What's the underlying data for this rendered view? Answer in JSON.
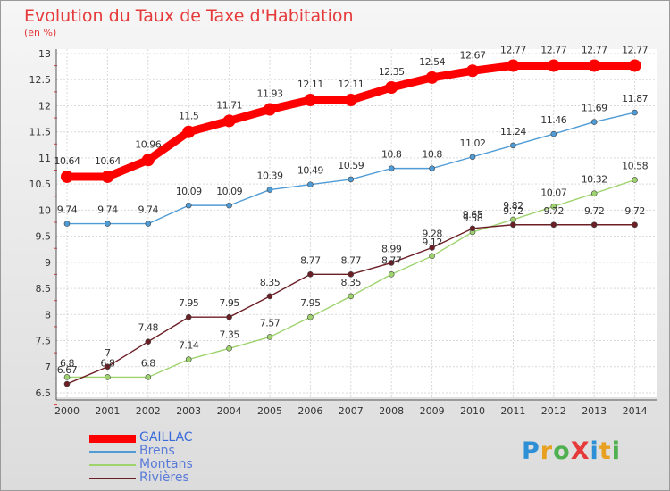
{
  "title": "Evolution du Taux de Taxe d'Habitation",
  "unit": "(en %)",
  "logo": {
    "text": "ProXiti",
    "letters": [
      {
        "ch": "P",
        "color": "#2d8fd6"
      },
      {
        "ch": "r",
        "color": "#e8a020"
      },
      {
        "ch": "o",
        "color": "#4fb04f"
      },
      {
        "ch": "X",
        "color": "#e63a3a"
      },
      {
        "ch": "i",
        "color": "#2d8fd6"
      },
      {
        "ch": "t",
        "color": "#e8a020"
      },
      {
        "ch": "i",
        "color": "#4fb04f"
      }
    ]
  },
  "chart_data": {
    "type": "line",
    "title": "Evolution du Taux de Taxe d'Habitation",
    "ylabel": "(en %)",
    "x": [
      2000,
      2001,
      2002,
      2003,
      2004,
      2005,
      2006,
      2007,
      2008,
      2009,
      2010,
      2011,
      2012,
      2013,
      2014
    ],
    "ylim": [
      6.5,
      13
    ],
    "yticks": [
      "6.5",
      "7",
      "7.5",
      "8",
      "8.5",
      "9",
      "9.5",
      "10",
      "10.5",
      "11",
      "11.5",
      "12",
      "12.5",
      "13"
    ],
    "grid": true,
    "legend_position": "bottom-left",
    "series": [
      {
        "name": "GAILLAC",
        "color": "#ff0000",
        "values": [
          10.64,
          10.64,
          10.96,
          11.5,
          11.71,
          11.93,
          12.11,
          12.11,
          12.35,
          12.54,
          12.67,
          12.77,
          12.77,
          12.77,
          12.77
        ],
        "labels": [
          "10.64",
          "10.64",
          "10.96",
          "11.5",
          "11.71",
          "11.93",
          "12.11",
          "12.11",
          "12.35",
          "12.54",
          "12.67",
          "12.77",
          "12.77",
          "12.77",
          "12.77"
        ]
      },
      {
        "name": "Brens",
        "color": "#4f9bd6",
        "values": [
          9.74,
          9.74,
          9.74,
          10.09,
          10.09,
          10.39,
          10.49,
          10.59,
          10.8,
          10.8,
          11.02,
          11.24,
          11.46,
          11.69,
          11.87
        ],
        "labels": [
          "9.74",
          "9.74",
          "9.74",
          "10.09",
          "10.09",
          "10.39",
          "10.49",
          "10.59",
          "10.8",
          "10.8",
          "11.02",
          "11.24",
          "11.46",
          "11.69",
          "11.87"
        ]
      },
      {
        "name": "Montans",
        "color": "#9ed36e",
        "values": [
          6.8,
          6.8,
          6.8,
          7.14,
          7.35,
          7.57,
          7.95,
          8.35,
          8.77,
          9.12,
          9.58,
          9.82,
          10.07,
          10.32,
          10.58
        ],
        "labels": [
          "6.8",
          "6.8",
          "6.8",
          "7.14",
          "7.35",
          "7.57",
          "7.95",
          "8.35",
          "8.77",
          "9.12",
          "9.58",
          "9.82",
          "10.07",
          "10.32",
          "10.58"
        ]
      },
      {
        "name": "Rivières",
        "color": "#6b1f25",
        "values": [
          6.67,
          7,
          7.48,
          7.95,
          7.95,
          8.35,
          8.77,
          8.77,
          8.99,
          9.28,
          9.65,
          9.72,
          9.72,
          9.72,
          9.72
        ],
        "labels": [
          "6.67",
          "7",
          "7.48",
          "7.95",
          "7.95",
          "8.35",
          "8.77",
          "8.77",
          "8.99",
          "9.28",
          "9.65",
          "9.72",
          "9.72",
          "9.72",
          "9.72"
        ]
      }
    ]
  }
}
